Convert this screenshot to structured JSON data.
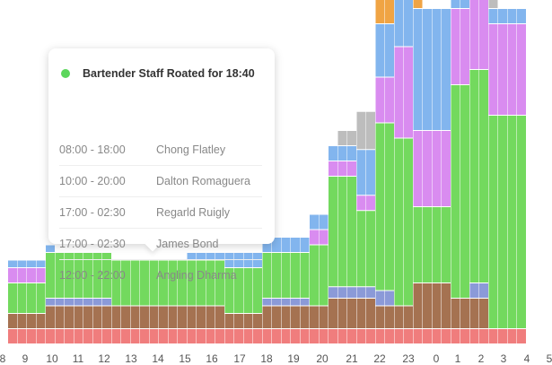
{
  "colors": {
    "red": "#f07d7d",
    "brown": "#a57251",
    "blue_gray": "#8b9ad8",
    "green": "#73d95e",
    "purple": "#d98cf0",
    "light_blue": "#82b5ee",
    "orange": "#f0a444",
    "gray": "#bdbdbd"
  },
  "chart_data": {
    "type": "bar",
    "stacked": true,
    "x_tick_labels": [
      "8",
      "9",
      "10",
      "11",
      "12",
      "13",
      "14",
      "15",
      "16",
      "17",
      "18",
      "19",
      "20",
      "21",
      "22",
      "23",
      "0",
      "1",
      "2",
      "3",
      "4",
      "5"
    ],
    "series_order": [
      "red",
      "brown",
      "blue_gray",
      "green",
      "purple",
      "light_blue",
      "orange",
      "gray"
    ],
    "y_range": [
      0,
      16
    ],
    "bars": [
      {
        "red": 1,
        "brown": 1,
        "blue_gray": 0,
        "green": 2,
        "purple": 1,
        "light_blue": 0.5
      },
      {
        "red": 1,
        "brown": 1,
        "blue_gray": 0,
        "green": 2,
        "purple": 1,
        "light_blue": 0.5
      },
      {
        "red": 1,
        "brown": 1,
        "blue_gray": 0,
        "green": 2,
        "purple": 1,
        "light_blue": 0.5
      },
      {
        "red": 1,
        "brown": 1,
        "blue_gray": 0,
        "green": 2,
        "purple": 1,
        "light_blue": 0.5
      },
      {
        "red": 1,
        "brown": 1.5,
        "blue_gray": 0.5,
        "green": 3,
        "purple": 0,
        "light_blue": 0.5
      },
      {
        "red": 1,
        "brown": 1.5,
        "blue_gray": 0.5,
        "green": 3
      },
      {
        "red": 1,
        "brown": 1.5,
        "blue_gray": 0.5,
        "green": 3
      },
      {
        "red": 1,
        "brown": 1.5,
        "blue_gray": 0.5,
        "green": 3
      },
      {
        "red": 1,
        "brown": 1.5,
        "blue_gray": 0.5,
        "green": 3
      },
      {
        "red": 1,
        "brown": 1.5,
        "blue_gray": 0.5,
        "green": 3
      },
      {
        "red": 1,
        "brown": 1.5,
        "blue_gray": 0.5,
        "green": 3
      },
      {
        "red": 1,
        "brown": 1.5,
        "blue_gray": 0,
        "green": 3
      },
      {
        "red": 1,
        "brown": 1.5,
        "blue_gray": 0,
        "green": 3
      },
      {
        "red": 1,
        "brown": 1.5,
        "blue_gray": 0,
        "green": 3
      },
      {
        "red": 1,
        "brown": 1.5,
        "blue_gray": 0,
        "green": 3
      },
      {
        "red": 1,
        "brown": 1.5,
        "blue_gray": 0,
        "green": 3
      },
      {
        "red": 1,
        "brown": 1.5,
        "blue_gray": 0,
        "green": 3
      },
      {
        "red": 1,
        "brown": 1.5,
        "blue_gray": 0,
        "green": 3
      },
      {
        "red": 1,
        "brown": 1.5,
        "blue_gray": 0,
        "green": 3
      },
      {
        "red": 1,
        "brown": 1.5,
        "blue_gray": 0,
        "green": 3,
        "light_blue": 0.5
      },
      {
        "red": 1,
        "brown": 1.5,
        "blue_gray": 0,
        "green": 3,
        "light_blue": 0.5
      },
      {
        "red": 1,
        "brown": 1.5,
        "blue_gray": 0,
        "green": 3,
        "light_blue": 0.5
      },
      {
        "red": 1,
        "brown": 1.5,
        "blue_gray": 0,
        "green": 3,
        "light_blue": 0.5
      },
      {
        "red": 1,
        "brown": 1,
        "blue_gray": 0,
        "green": 3,
        "light_blue": 1
      },
      {
        "red": 1,
        "brown": 1,
        "blue_gray": 0,
        "green": 3,
        "light_blue": 1
      },
      {
        "red": 1,
        "brown": 1,
        "blue_gray": 0,
        "green": 3,
        "light_blue": 1
      },
      {
        "red": 1,
        "brown": 1,
        "blue_gray": 0,
        "green": 3,
        "light_blue": 1
      },
      {
        "red": 1,
        "brown": 1.5,
        "blue_gray": 0.5,
        "green": 3,
        "light_blue": 1
      },
      {
        "red": 1,
        "brown": 1.5,
        "blue_gray": 0.5,
        "green": 3,
        "light_blue": 1
      },
      {
        "red": 1,
        "brown": 1.5,
        "blue_gray": 0.5,
        "green": 3,
        "light_blue": 1
      },
      {
        "red": 1,
        "brown": 1.5,
        "blue_gray": 0.5,
        "green": 3,
        "light_blue": 1
      },
      {
        "red": 1,
        "brown": 1.5,
        "blue_gray": 0.5,
        "green": 3,
        "light_blue": 1
      },
      {
        "red": 1,
        "brown": 1.5,
        "blue_gray": 0,
        "green": 4,
        "purple": 1,
        "light_blue": 1
      },
      {
        "red": 1,
        "brown": 1.5,
        "blue_gray": 0,
        "green": 4,
        "purple": 1,
        "light_blue": 1
      },
      {
        "red": 1,
        "brown": 2,
        "blue_gray": 0.75,
        "green": 7.25,
        "purple": 1,
        "light_blue": 1
      },
      {
        "red": 1,
        "brown": 2,
        "blue_gray": 0.75,
        "green": 7.25,
        "purple": 1,
        "light_blue": 1,
        "gray": 1
      },
      {
        "red": 1,
        "brown": 2,
        "blue_gray": 0.75,
        "green": 7.25,
        "purple": 1,
        "light_blue": 1,
        "gray": 1
      },
      {
        "red": 1,
        "brown": 2,
        "blue_gray": 0.75,
        "green": 5,
        "purple": 1,
        "light_blue": 3,
        "gray": 2.5
      },
      {
        "red": 1,
        "brown": 2,
        "blue_gray": 0.75,
        "green": 5,
        "purple": 1,
        "light_blue": 3,
        "gray": 2.5
      },
      {
        "red": 1,
        "brown": 1.5,
        "blue_gray": 1,
        "green": 11,
        "purple": 3,
        "light_blue": 3.5,
        "orange": 3
      },
      {
        "red": 1,
        "brown": 1.5,
        "blue_gray": 1,
        "green": 11,
        "purple": 3,
        "light_blue": 3.5,
        "orange": 3
      },
      {
        "red": 1,
        "brown": 1.5,
        "blue_gray": 0,
        "green": 11,
        "purple": 6,
        "light_blue": 6,
        "orange": 3
      },
      {
        "red": 1,
        "brown": 1.5,
        "blue_gray": 0,
        "green": 11,
        "purple": 6,
        "light_blue": 6,
        "orange": 3
      },
      {
        "red": 1,
        "brown": 3,
        "blue_gray": 0,
        "green": 5,
        "purple": 5,
        "light_blue": 8,
        "orange": 2
      },
      {
        "red": 1,
        "brown": 3,
        "blue_gray": 0,
        "green": 5,
        "purple": 5,
        "light_blue": 8
      },
      {
        "red": 1,
        "brown": 3,
        "blue_gray": 0,
        "green": 5,
        "purple": 5,
        "light_blue": 8
      },
      {
        "red": 1,
        "brown": 3,
        "blue_gray": 0,
        "green": 5,
        "purple": 5,
        "light_blue": 8
      },
      {
        "red": 1,
        "brown": 2,
        "blue_gray": 0,
        "green": 14,
        "purple": 5,
        "light_blue": 2,
        "gray": 1.5
      },
      {
        "red": 1,
        "brown": 2,
        "blue_gray": 0,
        "green": 14,
        "purple": 5,
        "light_blue": 2,
        "gray": 1.5
      },
      {
        "red": 1,
        "brown": 2,
        "blue_gray": 1,
        "green": 14,
        "purple": 5,
        "light_blue": 2,
        "gray": 0.5
      },
      {
        "red": 1,
        "brown": 2,
        "blue_gray": 1,
        "green": 14,
        "purple": 5,
        "light_blue": 2,
        "gray": 0.5
      },
      {
        "red": 1,
        "brown": 0,
        "blue_gray": 0,
        "green": 14,
        "purple": 6,
        "light_blue": 1,
        "gray": 2
      },
      {
        "red": 1,
        "brown": 0,
        "blue_gray": 0,
        "green": 14,
        "purple": 6,
        "light_blue": 1
      },
      {
        "red": 1,
        "brown": 0,
        "blue_gray": 0,
        "green": 14,
        "purple": 6,
        "light_blue": 1
      },
      {
        "red": 1,
        "brown": 0,
        "blue_gray": 0,
        "green": 14,
        "purple": 6,
        "light_blue": 1
      }
    ]
  },
  "tooltip": {
    "title": "Bartender Staff Roated for 18:40",
    "dot_color": "#5bd65b",
    "rows": [
      {
        "time": "08:00 - 18:00",
        "name": "Chong Flatley"
      },
      {
        "time": "10:00 - 20:00",
        "name": "Dalton Romaguera"
      },
      {
        "time": "17:00 - 02:30",
        "name": "Regarld Ruigly"
      },
      {
        "time": "17:00 - 02:30",
        "name": "James Bond"
      },
      {
        "time": "12:00 - 22:00",
        "name": "Angling Dharma"
      }
    ]
  }
}
